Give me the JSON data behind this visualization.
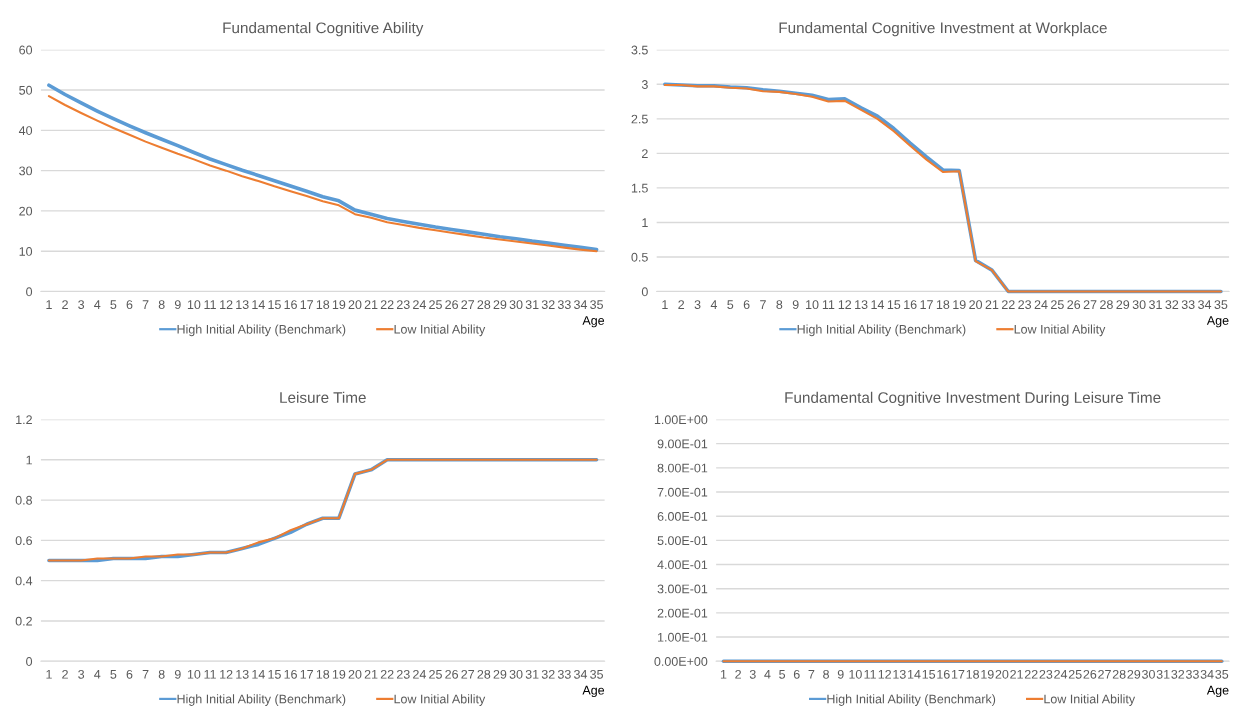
{
  "chart_data": [
    {
      "type": "line",
      "title": "Fundamental Cognitive Ability",
      "xlabel": "Age",
      "categories": [
        "1",
        "2",
        "3",
        "4",
        "5",
        "6",
        "7",
        "8",
        "9",
        "10",
        "11",
        "12",
        "13",
        "14",
        "15",
        "16",
        "17",
        "18",
        "19",
        "20",
        "21",
        "22",
        "23",
        "24",
        "25",
        "26",
        "27",
        "28",
        "29",
        "30",
        "31",
        "32",
        "33",
        "34",
        "35"
      ],
      "ylim": [
        0,
        60
      ],
      "yticks": [
        0,
        10,
        20,
        30,
        40,
        50,
        60
      ],
      "grid": "y",
      "legend": "bottom",
      "marker": "none",
      "line_style": "solid",
      "series": [
        {
          "name": "High Initial Ability (Benchmark)",
          "color": "#5b9bd5",
          "values": [
            51.2,
            48.9,
            46.8,
            44.8,
            42.9,
            41.1,
            39.4,
            37.8,
            36.2,
            34.5,
            32.9,
            31.5,
            30.1,
            28.8,
            27.5,
            26.2,
            24.9,
            23.5,
            22.5,
            20.2,
            19.2,
            18.1,
            17.4,
            16.7,
            16.0,
            15.4,
            14.8,
            14.2,
            13.6,
            13.1,
            12.5,
            12.0,
            11.5,
            11.0,
            10.4
          ]
        },
        {
          "name": "Low Initial Ability",
          "color": "#ed7d31",
          "values": [
            48.5,
            46.3,
            44.3,
            42.4,
            40.6,
            38.9,
            37.2,
            35.7,
            34.2,
            32.8,
            31.3,
            30.0,
            28.6,
            27.4,
            26.1,
            24.9,
            23.7,
            22.4,
            21.4,
            19.2,
            18.3,
            17.2,
            16.5,
            15.8,
            15.2,
            14.6,
            14.0,
            13.4,
            12.9,
            12.4,
            11.9,
            11.4,
            10.9,
            10.4,
            10.0
          ]
        }
      ]
    },
    {
      "type": "line",
      "title": "Fundamental Cognitive Investment at Workplace",
      "xlabel": "Age",
      "categories": [
        "1",
        "2",
        "3",
        "4",
        "5",
        "6",
        "7",
        "8",
        "9",
        "10",
        "11",
        "12",
        "13",
        "14",
        "15",
        "16",
        "17",
        "18",
        "19",
        "20",
        "21",
        "22",
        "23",
        "24",
        "25",
        "26",
        "27",
        "28",
        "29",
        "30",
        "31",
        "32",
        "33",
        "34",
        "35"
      ],
      "ylim": [
        0,
        3.5
      ],
      "yticks": [
        0,
        0.5,
        1,
        1.5,
        2,
        2.5,
        3,
        3.5
      ],
      "grid": "y",
      "legend": "bottom",
      "marker": "none",
      "line_style": "solid",
      "series": [
        {
          "name": "High Initial Ability (Benchmark)",
          "color": "#5b9bd5",
          "values": [
            3.0,
            2.99,
            2.98,
            2.98,
            2.96,
            2.95,
            2.92,
            2.9,
            2.87,
            2.84,
            2.78,
            2.79,
            2.66,
            2.54,
            2.36,
            2.15,
            1.95,
            1.76,
            1.75,
            0.45,
            0.31,
            0,
            0,
            0,
            0,
            0,
            0,
            0,
            0,
            0,
            0,
            0,
            0,
            0,
            0
          ]
        },
        {
          "name": "Low Initial Ability",
          "color": "#ed7d31",
          "values": [
            2.99,
            2.99,
            2.97,
            2.97,
            2.95,
            2.94,
            2.9,
            2.89,
            2.86,
            2.82,
            2.75,
            2.76,
            2.63,
            2.5,
            2.32,
            2.11,
            1.91,
            1.73,
            1.74,
            0.44,
            0.31,
            0,
            0,
            0,
            0,
            0,
            0,
            0,
            0,
            0,
            0,
            0,
            0,
            0,
            0
          ]
        }
      ]
    },
    {
      "type": "line",
      "title": "Leisure Time",
      "xlabel": "Age",
      "categories": [
        "1",
        "2",
        "3",
        "4",
        "5",
        "6",
        "7",
        "8",
        "9",
        "10",
        "11",
        "12",
        "13",
        "14",
        "15",
        "16",
        "17",
        "18",
        "19",
        "20",
        "21",
        "22",
        "23",
        "24",
        "25",
        "26",
        "27",
        "28",
        "29",
        "30",
        "31",
        "32",
        "33",
        "34",
        "35"
      ],
      "ylim": [
        0,
        1.2
      ],
      "yticks": [
        0,
        0.2,
        0.4,
        0.6,
        0.8,
        1,
        1.2
      ],
      "grid": "y",
      "legend": "bottom",
      "marker": "none",
      "line_style": "solid",
      "series": [
        {
          "name": "High Initial Ability (Benchmark)",
          "color": "#5b9bd5",
          "values": [
            0.5,
            0.5,
            0.5,
            0.5,
            0.51,
            0.51,
            0.51,
            0.52,
            0.52,
            0.53,
            0.54,
            0.54,
            0.56,
            0.58,
            0.61,
            0.64,
            0.68,
            0.71,
            0.71,
            0.93,
            0.95,
            1,
            1,
            1,
            1,
            1,
            1,
            1,
            1,
            1,
            1,
            1,
            1,
            1,
            1
          ]
        },
        {
          "name": "Low Initial Ability",
          "color": "#ed7d31",
          "values": [
            0.5,
            0.5,
            0.5,
            0.51,
            0.51,
            0.51,
            0.52,
            0.52,
            0.53,
            0.53,
            0.54,
            0.54,
            0.56,
            0.59,
            0.61,
            0.65,
            0.68,
            0.71,
            0.71,
            0.93,
            0.95,
            1,
            1,
            1,
            1,
            1,
            1,
            1,
            1,
            1,
            1,
            1,
            1,
            1,
            1
          ]
        }
      ]
    },
    {
      "type": "line",
      "title": "Fundamental Cognitive Investment During Leisure Time",
      "xlabel": "Age",
      "categories": [
        "1",
        "2",
        "3",
        "4",
        "5",
        "6",
        "7",
        "8",
        "9",
        "10",
        "11",
        "12",
        "13",
        "14",
        "15",
        "16",
        "17",
        "18",
        "19",
        "20",
        "21",
        "22",
        "23",
        "24",
        "25",
        "26",
        "27",
        "28",
        "29",
        "30",
        "31",
        "32",
        "33",
        "34",
        "35"
      ],
      "ylim": [
        0,
        1
      ],
      "yticks": [
        {
          "value": 0,
          "label": "0.00E+00"
        },
        {
          "value": 0.1,
          "label": "1.00E-01"
        },
        {
          "value": 0.2,
          "label": "2.00E-01"
        },
        {
          "value": 0.3,
          "label": "3.00E-01"
        },
        {
          "value": 0.4,
          "label": "4.00E-01"
        },
        {
          "value": 0.5,
          "label": "5.00E-01"
        },
        {
          "value": 0.6,
          "label": "6.00E-01"
        },
        {
          "value": 0.7,
          "label": "7.00E-01"
        },
        {
          "value": 0.8,
          "label": "8.00E-01"
        },
        {
          "value": 0.9,
          "label": "9.00E-01"
        },
        {
          "value": 1,
          "label": "1.00E+00"
        }
      ],
      "grid": "y",
      "legend": "bottom",
      "marker": "none",
      "line_style": "solid",
      "series": [
        {
          "name": "High Initial Ability (Benchmark)",
          "color": "#5b9bd5",
          "values": [
            0,
            0,
            0,
            0,
            0,
            0,
            0,
            0,
            0,
            0,
            0,
            0,
            0,
            0,
            0,
            0,
            0,
            0,
            0,
            0,
            0,
            0,
            0,
            0,
            0,
            0,
            0,
            0,
            0,
            0,
            0,
            0,
            0,
            0,
            0
          ]
        },
        {
          "name": "Low Initial Ability",
          "color": "#ed7d31",
          "values": [
            0,
            0,
            0,
            0,
            0,
            0,
            0,
            0,
            0,
            0,
            0,
            0,
            0,
            0,
            0,
            0,
            0,
            0,
            0,
            0,
            0,
            0,
            0,
            0,
            0,
            0,
            0,
            0,
            0,
            0,
            0,
            0,
            0,
            0,
            0
          ]
        }
      ]
    }
  ]
}
